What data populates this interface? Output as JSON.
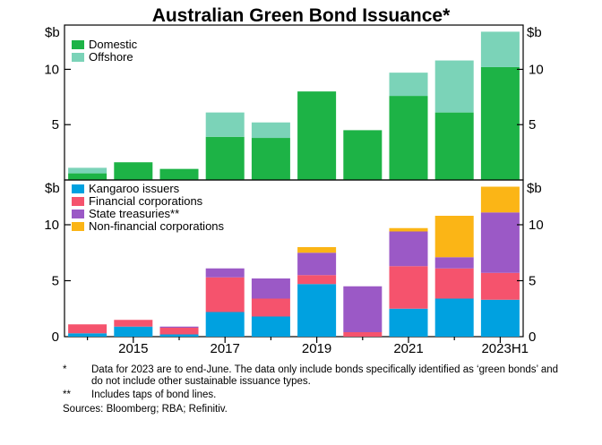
{
  "chart_data": [
    {
      "type": "bar",
      "stacked": true,
      "title": "Australian Green Bond Issuance*",
      "unit_label": "$b",
      "categories": [
        "2014",
        "2015",
        "2016",
        "2017",
        "2018",
        "2019",
        "2020",
        "2021",
        "2022",
        "2023H1"
      ],
      "series": [
        {
          "name": "Domestic",
          "color": "#1db346",
          "values": [
            0.6,
            1.6,
            1.0,
            3.9,
            3.8,
            8.0,
            4.5,
            7.6,
            6.1,
            10.2
          ]
        },
        {
          "name": "Offshore",
          "color": "#7bd3b8",
          "values": [
            0.5,
            0.0,
            0.0,
            2.2,
            1.4,
            0.0,
            0.0,
            2.1,
            4.7,
            3.2
          ]
        }
      ],
      "ylim": [
        0,
        14
      ],
      "yticks": [
        5,
        10
      ],
      "legend": "top-left",
      "grid": false
    },
    {
      "type": "bar",
      "stacked": true,
      "unit_label": "$b",
      "categories": [
        "2014",
        "2015",
        "2016",
        "2017",
        "2018",
        "2019",
        "2020",
        "2021",
        "2022",
        "2023H1"
      ],
      "series": [
        {
          "name": "Kangaroo issuers",
          "color": "#00a1e0",
          "values": [
            0.3,
            0.9,
            0.2,
            2.2,
            1.8,
            4.7,
            0.0,
            2.5,
            3.4,
            3.3
          ]
        },
        {
          "name": "Financial corporations",
          "color": "#f5536d",
          "values": [
            0.8,
            0.6,
            0.6,
            3.1,
            1.6,
            0.8,
            0.4,
            3.8,
            2.7,
            2.4
          ]
        },
        {
          "name": "State treasuries**",
          "color": "#9b59c6",
          "values": [
            0.0,
            0.0,
            0.1,
            0.8,
            1.8,
            2.0,
            4.1,
            3.1,
            1.0,
            5.4
          ]
        },
        {
          "name": "Non-financial corporations",
          "color": "#fbb516",
          "values": [
            0.0,
            0.0,
            0.0,
            0.0,
            0.0,
            0.5,
            0.0,
            0.3,
            3.7,
            2.3
          ]
        }
      ],
      "ylim": [
        0,
        14
      ],
      "yticks": [
        0,
        5,
        10
      ],
      "xtick_labels": [
        "2015",
        "2017",
        "2019",
        "2021",
        "2023H1"
      ],
      "legend": "top-left",
      "grid": false
    }
  ],
  "notes": [
    {
      "mark": "*",
      "text": "Data for 2023 are to end-June. The data only include bonds specifically identified as ‘green bonds’ and do not include other sustainable issuance types."
    },
    {
      "mark": "**",
      "text": "Includes taps of bond lines."
    }
  ],
  "sources": "Sources: Bloomberg; RBA; Refinitiv."
}
